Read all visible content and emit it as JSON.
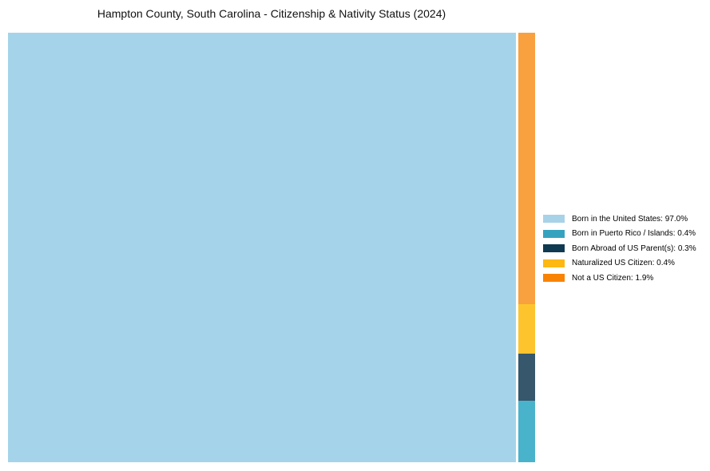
{
  "title": "Hampton County, South Carolina - Citizenship & Nativity Status (2024)",
  "chart_data": {
    "type": "treemap",
    "title": "Hampton County, South Carolina - Citizenship & Nativity Status (2024)",
    "series": [
      {
        "name": "Born in the United States",
        "value_pct": 97.0,
        "legend_label": "Born in the United States: 97.0%",
        "tile_color": "#a5d4ea",
        "legend_color": "#a8d2e7"
      },
      {
        "name": "Born in Puerto Rico / Islands",
        "value_pct": 0.4,
        "legend_label": "Born in Puerto Rico / Islands: 0.4%",
        "tile_color": "#4ab3cc",
        "legend_color": "#35a3c0"
      },
      {
        "name": "Born Abroad of US Parent(s)",
        "value_pct": 0.3,
        "legend_label": "Born Abroad of US Parent(s): 0.3%",
        "tile_color": "#36576c",
        "legend_color": "#0f3a52"
      },
      {
        "name": "Naturalized US Citizen",
        "value_pct": 0.4,
        "legend_label": "Naturalized US Citizen: 0.4%",
        "tile_color": "#fdc42e",
        "legend_color": "#fdb813"
      },
      {
        "name": "Not a US Citizen",
        "value_pct": 1.9,
        "legend_label": "Not a US Citizen: 1.9%",
        "tile_color": "#f9a03f",
        "legend_color": "#f98304"
      }
    ],
    "layout": {
      "background": "#ffffff",
      "legend_position": "right-center",
      "main_tile": "Born in the United States",
      "strip_order_top_to_bottom": [
        "Not a US Citizen",
        "Naturalized US Citizen",
        "Born Abroad of US Parent(s)",
        "Born in Puerto Rico / Islands"
      ],
      "strip_height_fractions": [
        0.632,
        0.115,
        0.11,
        0.143
      ]
    }
  }
}
